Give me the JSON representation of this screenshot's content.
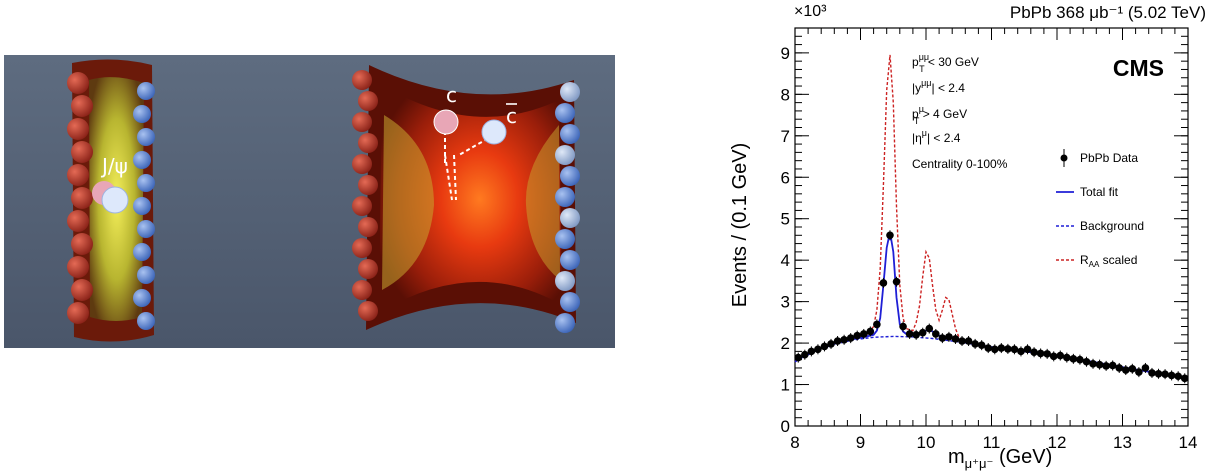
{
  "simulation": {
    "jpsi_label": "J/ψ",
    "c_label": "c",
    "cbar_label": "c"
  },
  "chart_data": {
    "type": "line",
    "title": "PbPb 368 μb⁻¹ (5.02 TeV)",
    "exponent": "×10³",
    "brand": "CMS",
    "xlabel": "m_{μ⁺μ⁻} (GeV)",
    "ylabel": "Events / (0.1 GeV)",
    "xlim": [
      8,
      14
    ],
    "ylim": [
      0,
      9.6
    ],
    "x_ticks": [
      8,
      9,
      10,
      11,
      12,
      13,
      14
    ],
    "y_ticks": [
      0,
      1,
      2,
      3,
      4,
      5,
      6,
      7,
      8,
      9
    ],
    "cuts": [
      "p_T^μμ < 30 GeV",
      "|y^μμ| < 2.4",
      "p_T^μ > 4 GeV",
      "|η^μ| < 2.4",
      "Centrality 0-100%"
    ],
    "legend": [
      "PbPb Data",
      "Total fit",
      "Background",
      "R_AA scaled"
    ],
    "legend_position": "right",
    "colors": {
      "data": "#000000",
      "total_fit": "#1f1fd6",
      "background": "#1f1fd6",
      "raa_scaled": "#cc2222"
    },
    "series": [
      {
        "name": "PbPb Data",
        "x": [
          8.05,
          8.15,
          8.25,
          8.35,
          8.45,
          8.55,
          8.65,
          8.75,
          8.85,
          8.95,
          9.05,
          9.15,
          9.25,
          9.35,
          9.45,
          9.55,
          9.65,
          9.75,
          9.85,
          9.95,
          10.05,
          10.15,
          10.25,
          10.35,
          10.45,
          10.55,
          10.65,
          10.75,
          10.85,
          10.95,
          11.05,
          11.15,
          11.25,
          11.35,
          11.45,
          11.55,
          11.65,
          11.75,
          11.85,
          11.95,
          12.05,
          12.15,
          12.25,
          12.35,
          12.45,
          12.55,
          12.65,
          12.75,
          12.85,
          12.95,
          13.05,
          13.15,
          13.25,
          13.35,
          13.45,
          13.55,
          13.65,
          13.75,
          13.85,
          13.95
        ],
        "values": [
          1.65,
          1.72,
          1.8,
          1.85,
          1.92,
          1.98,
          2.05,
          2.08,
          2.12,
          2.18,
          2.22,
          2.28,
          2.45,
          3.45,
          4.6,
          3.48,
          2.4,
          2.22,
          2.2,
          2.25,
          2.35,
          2.22,
          2.12,
          2.15,
          2.1,
          2.05,
          2.05,
          1.98,
          1.95,
          1.88,
          1.85,
          1.88,
          1.86,
          1.85,
          1.8,
          1.85,
          1.78,
          1.75,
          1.74,
          1.68,
          1.7,
          1.65,
          1.62,
          1.6,
          1.55,
          1.5,
          1.48,
          1.45,
          1.46,
          1.4,
          1.35,
          1.38,
          1.3,
          1.4,
          1.28,
          1.26,
          1.25,
          1.22,
          1.2,
          1.15
        ]
      },
      {
        "name": "Total fit",
        "x": [
          8.0,
          8.2,
          8.4,
          8.6,
          8.8,
          9.0,
          9.1,
          9.2,
          9.25,
          9.3,
          9.35,
          9.4,
          9.45,
          9.5,
          9.55,
          9.6,
          9.65,
          9.7,
          9.8,
          9.9,
          10.0,
          10.05,
          10.1,
          10.2,
          10.3,
          10.35,
          10.4,
          10.5,
          10.6,
          10.8,
          11.0,
          11.5,
          12.0,
          12.5,
          13.0,
          13.5,
          14.0
        ],
        "values": [
          1.55,
          1.75,
          1.88,
          1.98,
          2.07,
          2.13,
          2.16,
          2.2,
          2.3,
          2.6,
          3.4,
          4.3,
          4.68,
          4.2,
          3.1,
          2.45,
          2.28,
          2.22,
          2.2,
          2.22,
          2.3,
          2.34,
          2.28,
          2.18,
          2.15,
          2.17,
          2.12,
          2.06,
          2.02,
          1.95,
          1.89,
          1.8,
          1.69,
          1.56,
          1.42,
          1.28,
          1.15
        ]
      },
      {
        "name": "Background",
        "x": [
          8.0,
          8.3,
          8.6,
          8.9,
          9.2,
          9.5,
          9.8,
          10.1,
          10.4,
          10.7,
          11.0,
          11.5,
          12.0,
          12.5,
          13.0,
          13.5,
          14.0
        ],
        "values": [
          1.55,
          1.8,
          1.97,
          2.08,
          2.14,
          2.16,
          2.15,
          2.11,
          2.05,
          1.98,
          1.91,
          1.8,
          1.68,
          1.55,
          1.42,
          1.28,
          1.15
        ]
      },
      {
        "name": "R_AA scaled",
        "x": [
          8.0,
          8.2,
          8.4,
          8.6,
          8.8,
          9.0,
          9.1,
          9.2,
          9.25,
          9.3,
          9.35,
          9.4,
          9.45,
          9.5,
          9.55,
          9.6,
          9.65,
          9.7,
          9.8,
          9.85,
          9.9,
          9.95,
          10.0,
          10.05,
          10.1,
          10.15,
          10.2,
          10.25,
          10.3,
          10.35,
          10.4,
          10.45,
          10.5,
          10.6,
          10.8,
          11.0,
          11.5,
          12.0,
          12.5,
          13.0,
          13.5,
          14.0
        ],
        "values": [
          1.55,
          1.75,
          1.88,
          1.98,
          2.07,
          2.14,
          2.2,
          2.4,
          2.8,
          3.8,
          5.8,
          8.1,
          8.95,
          7.8,
          5.3,
          3.4,
          2.6,
          2.35,
          2.3,
          2.5,
          2.9,
          3.6,
          4.2,
          4.05,
          3.4,
          2.8,
          2.55,
          2.8,
          3.1,
          3.05,
          2.7,
          2.35,
          2.15,
          2.04,
          1.95,
          1.89,
          1.8,
          1.69,
          1.56,
          1.42,
          1.28,
          1.15
        ]
      }
    ]
  }
}
